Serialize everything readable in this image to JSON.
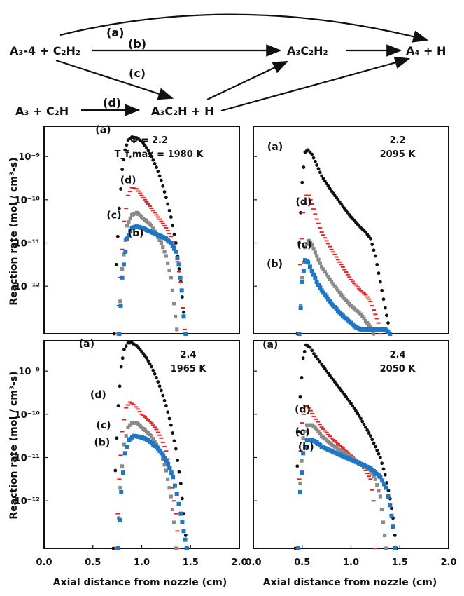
{
  "scheme": {
    "reactant_a3_4": "A₃-4 + C₂H₂",
    "reactant_a3": "A₃ + C₂H",
    "intermediate_a3c2h2": "A₃C₂H₂",
    "intermediate_a3c2h": "A₃C₂H + H",
    "product_a4": "A₄ + H",
    "arrow_labels": [
      "(a)",
      "(b)",
      "(c)",
      "(d)"
    ]
  },
  "common_axes": {
    "ylabel": "Reaction rate (mol / cm³-s)",
    "xlabel": "Axial distance from nozzle (cm)",
    "x_ticks": [
      "0.0",
      "0.5",
      "1.0",
      "1.5",
      "2.0"
    ],
    "y_ticks": [
      "10⁻⁹",
      "10⁻¹⁰",
      "10⁻¹¹",
      "10⁻¹²"
    ]
  },
  "colors": {
    "a": "#111111",
    "b": "#1f77c4",
    "c": "#8a8a8a",
    "d": "#e8231f"
  },
  "chart_data": [
    {
      "type": "scatter",
      "panel": "top-left",
      "phi_label": "Φ = 2.2",
      "temp_label": "T_f,max = 1980 K",
      "xlim": [
        0,
        2.0
      ],
      "ylim_log10": [
        -13.1,
        -8.3
      ],
      "series": [
        {
          "name": "(a)",
          "x": [
            0.72,
            0.74,
            0.77,
            0.8,
            0.83,
            0.86,
            0.9,
            0.95,
            1.0,
            1.05,
            1.1,
            1.15,
            1.2,
            1.25,
            1.3,
            1.35,
            1.4,
            1.43,
            1.45
          ],
          "log10_y": [
            -13.1,
            -11.5,
            -10.2,
            -9.3,
            -8.85,
            -8.62,
            -8.55,
            -8.57,
            -8.65,
            -8.8,
            -9.0,
            -9.25,
            -9.55,
            -9.95,
            -10.4,
            -11.0,
            -11.9,
            -12.6,
            -13.1
          ]
        },
        {
          "name": "(d)",
          "x": [
            0.75,
            0.78,
            0.82,
            0.86,
            0.9,
            0.95,
            1.0,
            1.05,
            1.1,
            1.15,
            1.2,
            1.25,
            1.3,
            1.35,
            1.4,
            1.42,
            1.44
          ],
          "log10_y": [
            -13.1,
            -11.8,
            -10.5,
            -9.9,
            -9.72,
            -9.75,
            -9.9,
            -10.05,
            -10.2,
            -10.35,
            -10.5,
            -10.65,
            -10.85,
            -11.2,
            -11.9,
            -12.5,
            -13.0
          ]
        },
        {
          "name": "(c)",
          "x": [
            0.76,
            0.8,
            0.85,
            0.9,
            0.95,
            1.0,
            1.05,
            1.1,
            1.15,
            1.2,
            1.25,
            1.3,
            1.33,
            1.36
          ],
          "log10_y": [
            -13.1,
            -11.6,
            -10.6,
            -10.35,
            -10.3,
            -10.4,
            -10.5,
            -10.6,
            -10.8,
            -11.0,
            -11.3,
            -11.8,
            -12.4,
            -13.0
          ]
        },
        {
          "name": "(b)",
          "x": [
            0.77,
            0.8,
            0.85,
            0.9,
            0.95,
            1.0,
            1.05,
            1.1,
            1.15,
            1.2,
            1.25,
            1.3,
            1.35,
            1.38,
            1.41,
            1.43,
            1.45
          ],
          "log10_y": [
            -13.1,
            -11.8,
            -10.9,
            -10.65,
            -10.62,
            -10.65,
            -10.7,
            -10.75,
            -10.8,
            -10.85,
            -10.9,
            -11.0,
            -11.2,
            -11.5,
            -12.1,
            -12.7,
            -13.1
          ]
        }
      ]
    },
    {
      "type": "scatter",
      "panel": "top-right",
      "phi_label": "2.2",
      "temp_label": "2095 K",
      "xlim": [
        0,
        2.0
      ],
      "ylim_log10": [
        -13.1,
        -8.3
      ],
      "series": [
        {
          "name": "(a)",
          "x": [
            0.45,
            0.47,
            0.5,
            0.53,
            0.56,
            0.6,
            0.65,
            0.7,
            0.8,
            0.9,
            1.0,
            1.1,
            1.15,
            1.2,
            1.25,
            1.3,
            1.35,
            1.38,
            1.4
          ],
          "log10_y": [
            -13.1,
            -11.0,
            -9.6,
            -8.9,
            -8.85,
            -8.95,
            -9.2,
            -9.45,
            -9.8,
            -10.1,
            -10.4,
            -10.65,
            -10.75,
            -10.9,
            -11.3,
            -11.9,
            -12.5,
            -12.85,
            -13.1
          ]
        },
        {
          "name": "(d)",
          "x": [
            0.46,
            0.48,
            0.51,
            0.54,
            0.57,
            0.6,
            0.65,
            0.7,
            0.8,
            0.9,
            1.0,
            1.1,
            1.15,
            1.2,
            1.25,
            1.28,
            1.3
          ],
          "log10_y": [
            -13.1,
            -11.5,
            -10.3,
            -9.9,
            -9.9,
            -10.1,
            -10.45,
            -10.75,
            -11.15,
            -11.5,
            -11.85,
            -12.1,
            -12.2,
            -12.35,
            -12.65,
            -12.85,
            -13.1
          ]
        },
        {
          "name": "(c)",
          "x": [
            0.47,
            0.5,
            0.53,
            0.57,
            0.6,
            0.65,
            0.7,
            0.8,
            0.9,
            1.0,
            1.1,
            1.15,
            1.2,
            1.23
          ],
          "log10_y": [
            -13.1,
            -11.8,
            -11.1,
            -10.95,
            -11.05,
            -11.3,
            -11.55,
            -11.9,
            -12.2,
            -12.45,
            -12.65,
            -12.8,
            -12.95,
            -13.1
          ]
        },
        {
          "name": "(b)",
          "x": [
            0.47,
            0.5,
            0.53,
            0.56,
            0.6,
            0.65,
            0.7,
            0.8,
            0.9,
            1.0,
            1.05,
            1.1,
            1.2,
            1.3,
            1.35,
            1.38,
            1.4
          ],
          "log10_y": [
            -13.1,
            -11.9,
            -11.4,
            -11.45,
            -11.65,
            -11.9,
            -12.1,
            -12.4,
            -12.65,
            -12.85,
            -12.95,
            -13.0,
            -13.0,
            -13.0,
            -13.0,
            -13.05,
            -13.1
          ]
        }
      ]
    },
    {
      "type": "scatter",
      "panel": "bottom-left",
      "phi_label": "2.4",
      "temp_label": "1965 K",
      "xlim": [
        0,
        2.0
      ],
      "ylim_log10": [
        -13.1,
        -8.3
      ],
      "series": [
        {
          "name": "(a)",
          "x": [
            0.71,
            0.73,
            0.76,
            0.79,
            0.82,
            0.86,
            0.9,
            0.95,
            1.0,
            1.05,
            1.1,
            1.15,
            1.2,
            1.25,
            1.3,
            1.35,
            1.4,
            1.43,
            1.45,
            1.47
          ],
          "log10_y": [
            -13.1,
            -11.3,
            -9.8,
            -8.9,
            -8.5,
            -8.35,
            -8.35,
            -8.42,
            -8.55,
            -8.7,
            -8.9,
            -9.15,
            -9.45,
            -9.8,
            -10.25,
            -10.8,
            -11.6,
            -12.3,
            -12.8,
            -13.1
          ]
        },
        {
          "name": "(d)",
          "x": [
            0.74,
            0.77,
            0.8,
            0.84,
            0.88,
            0.92,
            0.96,
            1.0,
            1.05,
            1.1,
            1.15,
            1.2,
            1.25,
            1.3,
            1.35,
            1.38
          ],
          "log10_y": [
            -13.1,
            -11.5,
            -10.4,
            -9.85,
            -9.72,
            -9.78,
            -9.88,
            -10.0,
            -10.1,
            -10.2,
            -10.35,
            -10.55,
            -10.85,
            -11.4,
            -12.3,
            -13.1
          ]
        },
        {
          "name": "(c)",
          "x": [
            0.75,
            0.78,
            0.82,
            0.86,
            0.9,
            0.95,
            1.0,
            1.05,
            1.1,
            1.15,
            1.2,
            1.25,
            1.3,
            1.33,
            1.35
          ],
          "log10_y": [
            -13.1,
            -11.7,
            -10.7,
            -10.3,
            -10.2,
            -10.2,
            -10.3,
            -10.4,
            -10.5,
            -10.7,
            -10.9,
            -11.3,
            -11.9,
            -12.5,
            -13.1
          ]
        },
        {
          "name": "(b)",
          "x": [
            0.76,
            0.79,
            0.83,
            0.87,
            0.92,
            0.97,
            1.02,
            1.07,
            1.12,
            1.17,
            1.22,
            1.27,
            1.32,
            1.36,
            1.4,
            1.43,
            1.46
          ],
          "log10_y": [
            -13.1,
            -11.8,
            -10.9,
            -10.6,
            -10.5,
            -10.52,
            -10.55,
            -10.6,
            -10.7,
            -10.8,
            -10.95,
            -11.15,
            -11.45,
            -11.85,
            -12.3,
            -12.7,
            -13.1
          ]
        }
      ]
    },
    {
      "type": "scatter",
      "panel": "bottom-right",
      "phi_label": "2.4",
      "temp_label": "2050 K",
      "xlim": [
        0,
        2.0
      ],
      "ylim_log10": [
        -13.1,
        -8.3
      ],
      "series": [
        {
          "name": "(a)",
          "x": [
            0.43,
            0.45,
            0.48,
            0.51,
            0.54,
            0.58,
            0.62,
            0.7,
            0.8,
            0.9,
            1.0,
            1.1,
            1.2,
            1.3,
            1.35,
            1.4,
            1.43,
            1.45,
            1.47
          ],
          "log10_y": [
            -13.1,
            -11.2,
            -9.6,
            -8.7,
            -8.4,
            -8.45,
            -8.6,
            -8.85,
            -9.15,
            -9.45,
            -9.75,
            -10.1,
            -10.5,
            -11.0,
            -11.4,
            -11.95,
            -12.4,
            -12.8,
            -13.1
          ]
        },
        {
          "name": "(d)",
          "x": [
            0.45,
            0.47,
            0.5,
            0.53,
            0.57,
            0.62,
            0.7,
            0.8,
            0.9,
            1.0,
            1.05,
            1.1,
            1.15,
            1.2,
            1.23,
            1.25
          ],
          "log10_y": [
            -13.1,
            -11.5,
            -10.2,
            -9.8,
            -9.85,
            -10.05,
            -10.3,
            -10.55,
            -10.75,
            -10.95,
            -11.05,
            -11.15,
            -11.3,
            -11.5,
            -12.0,
            -13.1
          ]
        },
        {
          "name": "(c)",
          "x": [
            0.46,
            0.48,
            0.51,
            0.55,
            0.6,
            0.65,
            0.7,
            0.8,
            0.9,
            1.0,
            1.1,
            1.2,
            1.25,
            1.3,
            1.33,
            1.36
          ],
          "log10_y": [
            -13.1,
            -11.6,
            -10.55,
            -10.25,
            -10.25,
            -10.35,
            -10.5,
            -10.7,
            -10.85,
            -11.0,
            -11.15,
            -11.3,
            -11.5,
            -11.9,
            -12.5,
            -13.1
          ]
        },
        {
          "name": "(b)",
          "x": [
            0.46,
            0.48,
            0.51,
            0.55,
            0.6,
            0.65,
            0.7,
            0.8,
            0.9,
            1.0,
            1.1,
            1.2,
            1.3,
            1.36,
            1.4,
            1.43,
            1.45
          ],
          "log10_y": [
            -13.1,
            -11.8,
            -10.9,
            -10.6,
            -10.6,
            -10.65,
            -10.75,
            -10.85,
            -10.95,
            -11.05,
            -11.15,
            -11.25,
            -11.45,
            -11.7,
            -12.1,
            -12.6,
            -13.1
          ]
        }
      ]
    }
  ]
}
